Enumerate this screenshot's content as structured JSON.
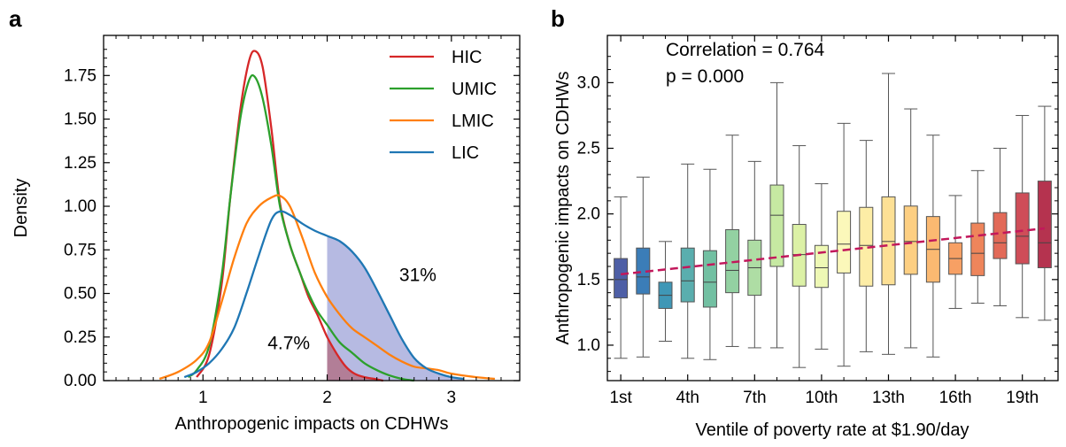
{
  "chart_data": [
    {
      "panel": "a",
      "type": "line",
      "xlabel": "Anthropogenic impacts on CDHWs",
      "ylabel": "Density",
      "xlim": [
        0.2,
        3.55
      ],
      "ylim": [
        0,
        1.98
      ],
      "x_ticks": [
        1,
        2,
        3
      ],
      "y_ticks": [
        0,
        0.25,
        0.5,
        0.75,
        1.0,
        1.25,
        1.5,
        1.75
      ],
      "y_tick_labels": [
        "0.00",
        "0.25",
        "0.50",
        "0.75",
        "1.00",
        "1.25",
        "1.50",
        "1.75"
      ],
      "legend_position": "top-right",
      "series": [
        {
          "name": "HIC",
          "color": "#d62728",
          "x": [
            0.95,
            1.05,
            1.15,
            1.22,
            1.3,
            1.37,
            1.42,
            1.48,
            1.55,
            1.62,
            1.7,
            1.78,
            1.85,
            1.92,
            2.0,
            2.08,
            2.15,
            2.22,
            2.3,
            2.38,
            2.45
          ],
          "y": [
            0.02,
            0.15,
            0.55,
            1.05,
            1.55,
            1.83,
            1.89,
            1.8,
            1.45,
            1.02,
            0.78,
            0.62,
            0.48,
            0.38,
            0.25,
            0.15,
            0.08,
            0.04,
            0.02,
            0.01,
            0
          ]
        },
        {
          "name": "UMIC",
          "color": "#2ca02c",
          "x": [
            0.88,
            0.95,
            1.05,
            1.15,
            1.22,
            1.3,
            1.37,
            1.42,
            1.48,
            1.55,
            1.62,
            1.7,
            1.78,
            1.85,
            1.92,
            2.0,
            2.1,
            2.2,
            2.3,
            2.4,
            2.5,
            2.6,
            2.7
          ],
          "y": [
            0.02,
            0.06,
            0.2,
            0.6,
            1.05,
            1.5,
            1.72,
            1.74,
            1.62,
            1.35,
            1.0,
            0.78,
            0.62,
            0.5,
            0.4,
            0.32,
            0.22,
            0.16,
            0.1,
            0.06,
            0.03,
            0.01,
            0
          ]
        },
        {
          "name": "LMIC",
          "color": "#ff7f0e",
          "x": [
            0.65,
            0.8,
            0.95,
            1.05,
            1.15,
            1.25,
            1.35,
            1.45,
            1.55,
            1.62,
            1.7,
            1.8,
            1.9,
            2.0,
            2.1,
            2.2,
            2.3,
            2.4,
            2.5,
            2.6,
            2.7,
            2.8,
            2.9,
            3.0,
            3.2,
            3.35
          ],
          "y": [
            0.01,
            0.05,
            0.12,
            0.22,
            0.45,
            0.7,
            0.9,
            1.0,
            1.05,
            1.06,
            1.0,
            0.82,
            0.62,
            0.48,
            0.38,
            0.3,
            0.25,
            0.2,
            0.15,
            0.11,
            0.08,
            0.07,
            0.06,
            0.04,
            0.02,
            0.01
          ]
        },
        {
          "name": "LIC",
          "color": "#1f77b4",
          "x": [
            0.85,
            0.95,
            1.05,
            1.15,
            1.25,
            1.35,
            1.45,
            1.55,
            1.62,
            1.7,
            1.8,
            1.9,
            2.0,
            2.1,
            2.2,
            2.3,
            2.4,
            2.5,
            2.6,
            2.7,
            2.8,
            2.9,
            3.0,
            3.1
          ],
          "y": [
            0.02,
            0.05,
            0.1,
            0.18,
            0.3,
            0.5,
            0.72,
            0.92,
            0.97,
            0.95,
            0.9,
            0.86,
            0.83,
            0.8,
            0.74,
            0.65,
            0.52,
            0.38,
            0.24,
            0.13,
            0.07,
            0.04,
            0.02,
            0.01
          ]
        }
      ],
      "shaded_threshold": 2,
      "annotations": [
        {
          "text": "31%",
          "x": 2.58,
          "y": 0.57
        },
        {
          "text": "4.7%",
          "x": 1.52,
          "y": 0.18
        }
      ]
    },
    {
      "panel": "b",
      "type": "box",
      "xlabel": "Ventile of poverty rate at $1.90/day",
      "ylabel": "Anthropogenic impacts on CDHWs",
      "ylim": [
        0.73,
        3.36
      ],
      "y_ticks": [
        1.0,
        1.5,
        2.0,
        2.5,
        3.0
      ],
      "y_tick_labels": [
        "1.0",
        "1.5",
        "2.0",
        "2.5",
        "3.0"
      ],
      "x_tick_labels": [
        "1st",
        "4th",
        "7th",
        "10th",
        "13th",
        "16th",
        "19th"
      ],
      "x_tick_positions": [
        1,
        4,
        7,
        10,
        13,
        16,
        19
      ],
      "categories": [
        1,
        2,
        3,
        4,
        5,
        6,
        7,
        8,
        9,
        10,
        11,
        12,
        13,
        14,
        15,
        16,
        17,
        18,
        19,
        20
      ],
      "boxes": [
        {
          "whislo": 0.9,
          "q1": 1.36,
          "med": 1.5,
          "q3": 1.66,
          "whishi": 2.13,
          "color": "#4e5fa6"
        },
        {
          "whislo": 0.91,
          "q1": 1.39,
          "med": 1.52,
          "q3": 1.74,
          "whishi": 2.28,
          "color": "#3b7db8"
        },
        {
          "whislo": 1.03,
          "q1": 1.28,
          "med": 1.38,
          "q3": 1.48,
          "whishi": 1.79,
          "color": "#3f97b6"
        },
        {
          "whislo": 0.9,
          "q1": 1.33,
          "med": 1.49,
          "q3": 1.74,
          "whishi": 2.38,
          "color": "#5aaeae"
        },
        {
          "whislo": 0.89,
          "q1": 1.29,
          "med": 1.48,
          "q3": 1.72,
          "whishi": 2.34,
          "color": "#72c0a2"
        },
        {
          "whislo": 0.99,
          "q1": 1.4,
          "med": 1.57,
          "q3": 1.88,
          "whishi": 2.6,
          "color": "#93d1a2"
        },
        {
          "whislo": 0.98,
          "q1": 1.38,
          "med": 1.59,
          "q3": 1.8,
          "whishi": 2.4,
          "color": "#aedda4"
        },
        {
          "whislo": 0.98,
          "q1": 1.6,
          "med": 1.99,
          "q3": 2.22,
          "whishi": 3.0,
          "color": "#c6e9a2"
        },
        {
          "whislo": 0.83,
          "q1": 1.45,
          "med": 1.69,
          "q3": 1.92,
          "whishi": 2.52,
          "color": "#dcf1a6"
        },
        {
          "whislo": 0.97,
          "q1": 1.44,
          "med": 1.59,
          "q3": 1.76,
          "whishi": 2.23,
          "color": "#eef8b5"
        },
        {
          "whislo": 0.84,
          "q1": 1.55,
          "med": 1.77,
          "q3": 2.02,
          "whishi": 2.69,
          "color": "#fbf8ba"
        },
        {
          "whislo": 0.95,
          "q1": 1.45,
          "med": 1.76,
          "q3": 2.05,
          "whishi": 2.56,
          "color": "#fdeda6"
        },
        {
          "whislo": 0.93,
          "q1": 1.46,
          "med": 1.79,
          "q3": 2.13,
          "whishi": 3.07,
          "color": "#fde095"
        },
        {
          "whislo": 0.98,
          "q1": 1.54,
          "med": 1.79,
          "q3": 2.06,
          "whishi": 2.8,
          "color": "#fdcf82"
        },
        {
          "whislo": 0.91,
          "q1": 1.48,
          "med": 1.73,
          "q3": 1.98,
          "whishi": 2.6,
          "color": "#fbb971"
        },
        {
          "whislo": 1.28,
          "q1": 1.54,
          "med": 1.66,
          "q3": 1.78,
          "whishi": 2.14,
          "color": "#f7a064"
        },
        {
          "whislo": 1.32,
          "q1": 1.53,
          "med": 1.7,
          "q3": 1.93,
          "whishi": 2.33,
          "color": "#ee855b"
        },
        {
          "whislo": 1.3,
          "q1": 1.66,
          "med": 1.78,
          "q3": 2.01,
          "whishi": 2.5,
          "color": "#e26a58"
        },
        {
          "whislo": 1.21,
          "q1": 1.62,
          "med": 1.83,
          "q3": 2.16,
          "whishi": 2.75,
          "color": "#cf4d58"
        },
        {
          "whislo": 1.19,
          "q1": 1.59,
          "med": 1.78,
          "q3": 2.25,
          "whishi": 2.82,
          "color": "#b5334f"
        }
      ],
      "trend_line": {
        "x": [
          1,
          20
        ],
        "y": [
          1.54,
          1.89
        ],
        "color": "#c2185b"
      },
      "annotations": [
        {
          "text": "Correlation = 0.764"
        },
        {
          "text": "p = 0.000"
        }
      ]
    }
  ]
}
